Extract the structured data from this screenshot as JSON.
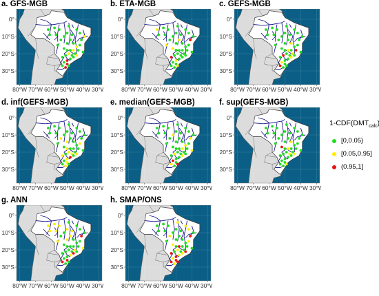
{
  "panels": [
    {
      "id": "a",
      "label": "a.  GFS-MGB"
    },
    {
      "id": "b",
      "label": "b.  ETA-MGB"
    },
    {
      "id": "c",
      "label": "c.  GEFS-MGB"
    },
    {
      "id": "d",
      "label": "d.  inf(GEFS-MGB)"
    },
    {
      "id": "e",
      "label": "e.  median(GEFS-MGB)"
    },
    {
      "id": "f",
      "label": "f.  sup(GEFS-MGB)"
    },
    {
      "id": "g",
      "label": "g.  ANN"
    },
    {
      "id": "h",
      "label": "h.  SMAP/ONS"
    }
  ],
  "axes": {
    "x_ticks": [
      "80°W",
      "70°W",
      "60°W",
      "50°W",
      "40°W",
      "30°W"
    ],
    "y_ticks": [
      "0°",
      "10°S",
      "20°S",
      "30°S"
    ]
  },
  "legend": {
    "title_main": "1-CDF(DMT",
    "title_sub": "calc",
    "title_end": ")",
    "items": [
      {
        "label": "[0,0.05)",
        "color": "#22dd22"
      },
      {
        "label": "[0.05,0.95]",
        "color": "#ffee00"
      },
      {
        "label": "(0.95,1]",
        "color": "#ee1111"
      }
    ]
  },
  "colors": {
    "ocean": "#0b5f86",
    "land": "#dcdcdc",
    "brazil": "#ffffff",
    "rivers": "#1c1c8c"
  }
}
